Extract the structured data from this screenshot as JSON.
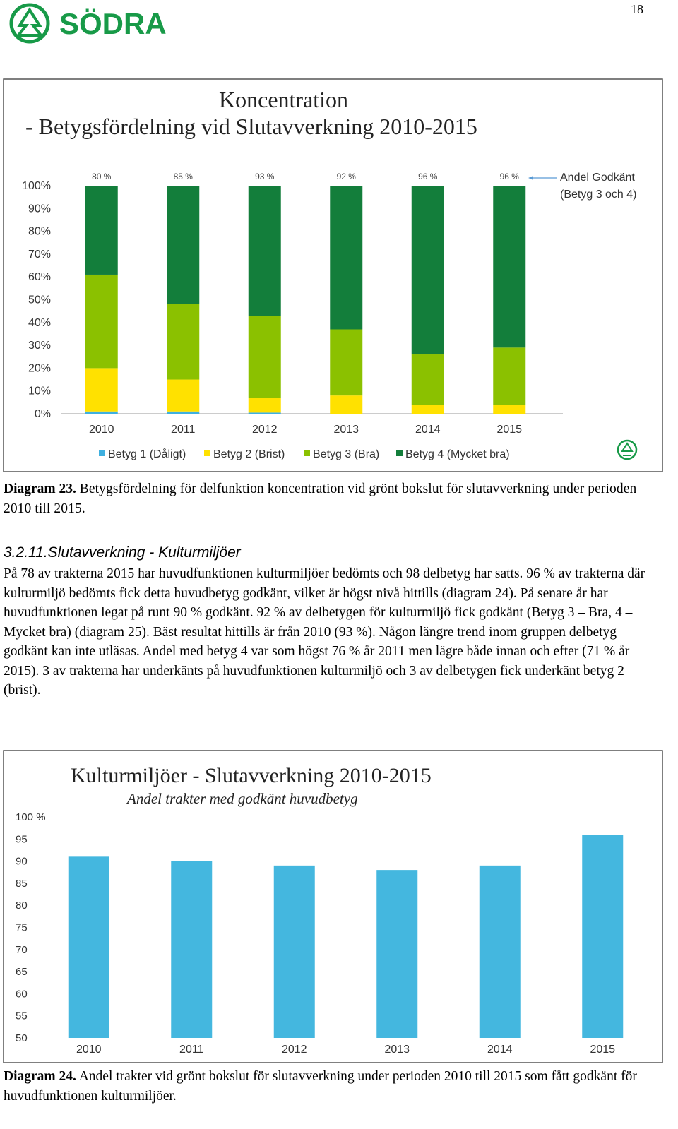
{
  "header": {
    "page_number": "18",
    "logo": "SÖDRA"
  },
  "chart_data": [
    {
      "type": "stacked-bar",
      "title": "Koncentration",
      "subtitle": "- Betygsfördelning vid Slutavverkning 2010-2015",
      "categories": [
        "2010",
        "2011",
        "2012",
        "2013",
        "2014",
        "2015"
      ],
      "series": [
        {
          "name": "Betyg 1 (Dåligt)",
          "color": "#3fb0e0",
          "values": [
            1,
            1,
            0.5,
            0,
            0,
            0
          ]
        },
        {
          "name": "Betyg 2 (Brist)",
          "color": "#ffe100",
          "values": [
            19,
            14,
            6.5,
            8,
            4,
            4
          ]
        },
        {
          "name": "Betyg 3 (Bra)",
          "color": "#8bc100",
          "values": [
            41,
            33,
            36,
            29,
            22,
            25
          ]
        },
        {
          "name": "Betyg 4 (Mycket bra)",
          "color": "#137e3b",
          "values": [
            39,
            52,
            57,
            63,
            74,
            71
          ]
        }
      ],
      "totals": {
        "values": [
          80,
          85,
          93,
          92,
          96,
          96
        ],
        "value_labels": [
          "80 %",
          "85 %",
          "93 %",
          "92 %",
          "96 %",
          "96 %"
        ]
      },
      "annotation": [
        "Andel Godkänt",
        "(Betyg 3 och 4)"
      ],
      "ylim": [
        0,
        100
      ],
      "yticks": [
        {
          "value": 0,
          "label": "0%"
        },
        {
          "value": 10,
          "label": "10%"
        },
        {
          "value": 20,
          "label": "20%"
        },
        {
          "value": 30,
          "label": "30%"
        },
        {
          "value": 40,
          "label": "40%"
        },
        {
          "value": 50,
          "label": "50%"
        },
        {
          "value": 60,
          "label": "60%"
        },
        {
          "value": 70,
          "label": "70%"
        },
        {
          "value": 80,
          "label": "80%"
        },
        {
          "value": 90,
          "label": "90%"
        },
        {
          "value": 100,
          "label": "100%"
        }
      ],
      "grid": false,
      "legend": "bottom"
    },
    {
      "type": "bar",
      "title": "Kulturmiljöer - Slutavverkning 2010-2015",
      "subtitle": "Andel trakter med godkänt huvudbetyg",
      "categories": [
        "2010",
        "2011",
        "2012",
        "2013",
        "2014",
        "2015"
      ],
      "values": [
        91,
        90,
        89,
        88,
        89,
        96
      ],
      "color": "#44b7df",
      "ylim": [
        50,
        100
      ],
      "yticks": [
        50,
        55,
        60,
        65,
        70,
        75,
        80,
        85,
        90,
        95,
        {
          "value": 100,
          "label": "100 %"
        }
      ],
      "grid": false
    }
  ],
  "captions": [
    {
      "label": "Diagram 23.",
      "text": "Betygsfördelning för delfunktion koncentration vid grönt bokslut för slutavverkning under perioden 2010 till 2015."
    },
    {
      "label": "Diagram 24.",
      "text": "Andel trakter vid grönt bokslut för slutavverkning under perioden 2010 till 2015 som fått godkänt för huvudfunktionen kulturmiljöer."
    }
  ],
  "section": {
    "number": "3.2.11.",
    "title": "Slutavverkning - Kulturmiljöer",
    "paragraph": "På 78 av trakterna 2015 har huvudfunktionen kulturmiljöer bedömts och 98 delbetyg har satts. 96 % av trakterna där kulturmiljö bedömts fick detta huvudbetyg godkänt, vilket är högst nivå hittills (diagram 24). På senare år har huvudfunktionen legat på runt 90 % godkänt. 92 % av delbetygen för kulturmiljö fick godkänt (Betyg 3 – Bra, 4 – Mycket bra) (diagram 25). Bäst resultat hittills är från 2010 (93 %). Någon längre trend inom gruppen delbetyg godkänt kan inte utläsas. Andel med betyg 4 var som högst 76 % år 2011 men lägre både innan och efter (71 % år 2015). 3 av trakterna har underkänts på huvudfunktionen kulturmiljö och 3 av delbetygen fick underkänt betyg 2 (brist)."
  }
}
